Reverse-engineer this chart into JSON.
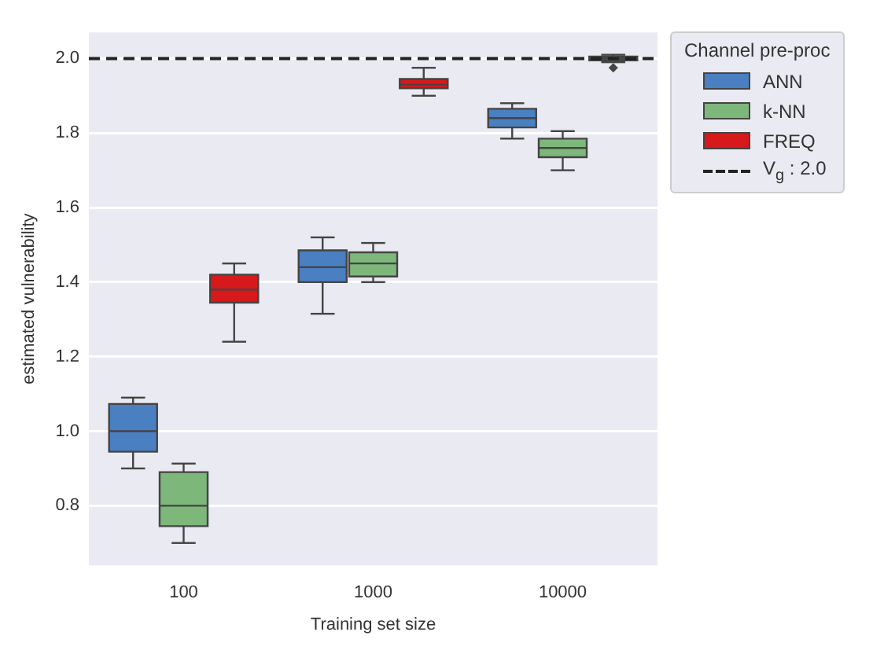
{
  "chart_data": {
    "type": "box",
    "categories": [
      "100",
      "1000",
      "10000"
    ],
    "xlabel": "Training set size",
    "ylabel": "estimated vulnerability",
    "ylim": [
      0.64,
      2.07
    ],
    "yticks": [
      0.8,
      {
        "value": 1,
        "label": "1.0"
      },
      1.2,
      1.4,
      1.6,
      1.8,
      {
        "value": 2,
        "label": "2.0"
      }
    ],
    "grid": "y",
    "legend": "right",
    "legend_title": "Channel pre-proc",
    "series": [
      {
        "name": "ANN",
        "color": "#4a7fc1",
        "boxes": [
          {
            "low": 0.9,
            "q1": 0.945,
            "median": 1.0,
            "q3": 1.073,
            "high": 1.09
          },
          {
            "low": 1.315,
            "q1": 1.4,
            "median": 1.44,
            "q3": 1.485,
            "high": 1.52
          },
          {
            "low": 1.785,
            "q1": 1.815,
            "median": 1.84,
            "q3": 1.865,
            "high": 1.88
          }
        ]
      },
      {
        "name": "k-NN",
        "color": "#7db77a",
        "boxes": [
          {
            "low": 0.7,
            "q1": 0.745,
            "median": 0.8,
            "q3": 0.89,
            "high": 0.913
          },
          {
            "low": 1.4,
            "q1": 1.415,
            "median": 1.45,
            "q3": 1.48,
            "high": 1.505
          },
          {
            "low": 1.7,
            "q1": 1.735,
            "median": 1.76,
            "q3": 1.785,
            "high": 1.805
          }
        ]
      },
      {
        "name": "FREQ",
        "color": "#d7191c",
        "boxes": [
          {
            "low": 1.24,
            "q1": 1.345,
            "median": 1.38,
            "q3": 1.42,
            "high": 1.45
          },
          {
            "low": 1.9,
            "q1": 1.92,
            "median": 1.93,
            "q3": 1.945,
            "high": 1.975
          },
          {
            "low": 1.99,
            "q1": 1.995,
            "median": 2.0,
            "q3": 2.005,
            "high": 2.01,
            "outliers": [
              1.975
            ]
          }
        ]
      }
    ],
    "ref_lines": [
      {
        "axis": "y",
        "value": 2.0,
        "label": "V$_{g}$ : 2.0",
        "color": "#222222",
        "line_style": "dashed"
      }
    ]
  }
}
